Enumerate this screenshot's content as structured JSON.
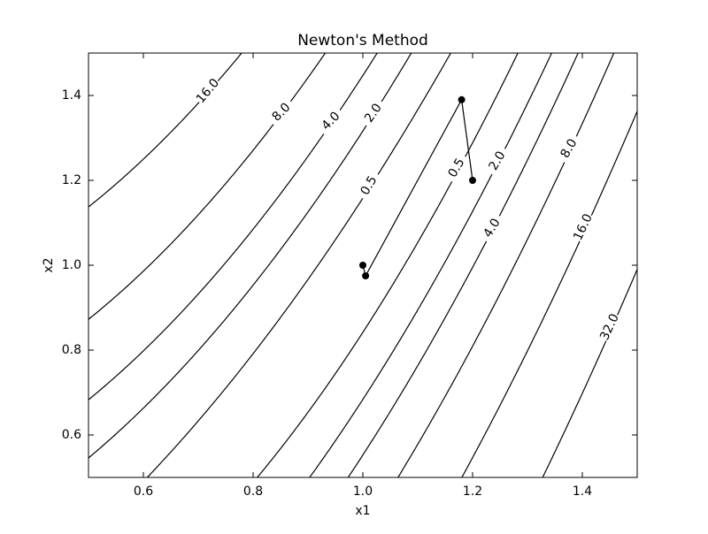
{
  "chart_data": {
    "type": "contour",
    "title": "Newton's Method",
    "x_label": "x1",
    "y_label": "x2",
    "xlim": [
      0.5,
      1.5
    ],
    "ylim": [
      0.5,
      1.5
    ],
    "xticks": [
      0.6,
      0.8,
      {
        "value": 1.0,
        "label": "1.0"
      },
      1.2,
      1.4
    ],
    "yticks": [
      0.6,
      0.8,
      {
        "value": 1.0,
        "label": "1.0"
      },
      1.2,
      1.4
    ],
    "levels": [
      0.5,
      {
        "value": 2,
        "label": "2.0"
      },
      {
        "value": 4,
        "label": "4.0"
      },
      {
        "value": 8,
        "label": "8.0"
      },
      {
        "value": 16,
        "label": "16.0"
      },
      {
        "value": 32,
        "label": "32.0"
      }
    ],
    "line_color": "#000000",
    "series": [
      {
        "color": "#000000",
        "x": [
          1.2,
          1.18,
          1.005,
          1.0
        ],
        "y": [
          1.2,
          1.39,
          0.975,
          1.0
        ]
      }
    ]
  }
}
